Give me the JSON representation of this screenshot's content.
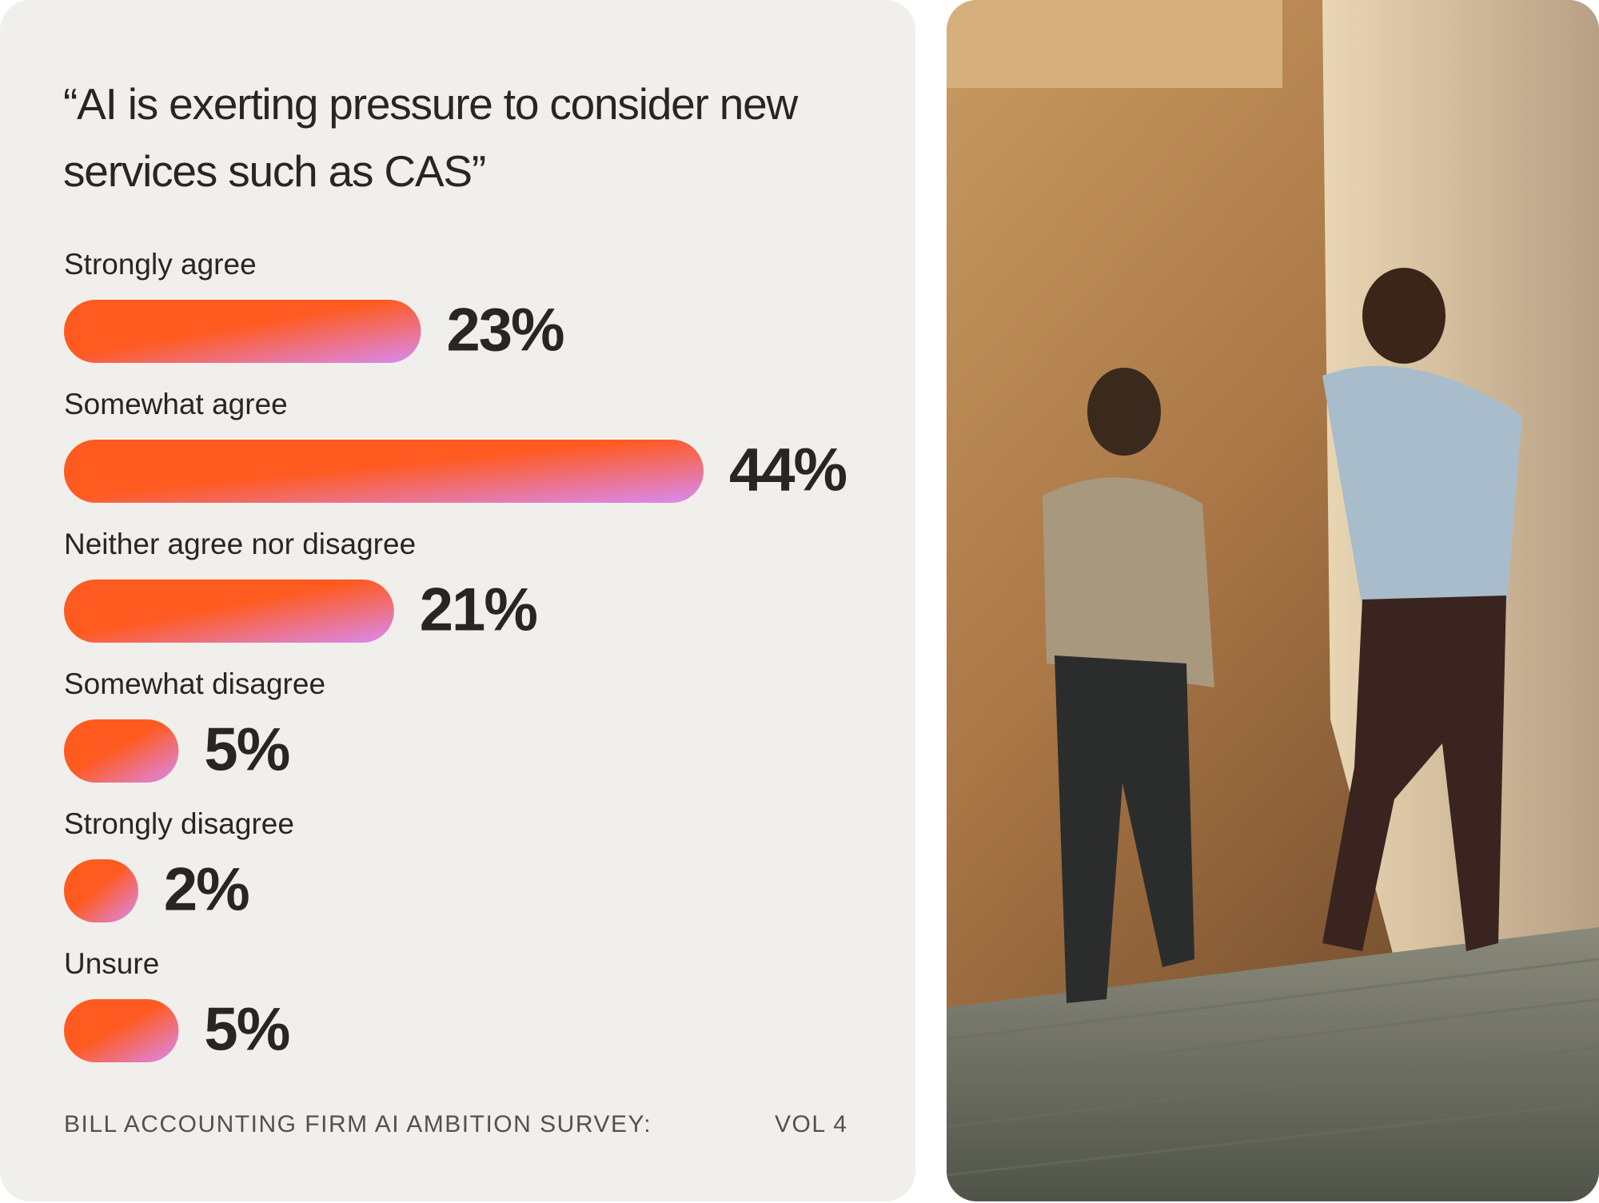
{
  "chart_data": {
    "type": "bar",
    "title": "“AI is exerting pressure to consider new services such as CAS”",
    "categories": [
      "Strongly agree",
      "Somewhat agree",
      "Neither agree nor disagree",
      "Somewhat disagree",
      "Strongly disagree",
      "Unsure"
    ],
    "values": [
      23,
      44,
      21,
      5,
      2,
      5
    ],
    "value_labels": [
      "23%",
      "44%",
      "21%",
      "5%",
      "2%",
      "5%"
    ],
    "color": "#ff5a1f",
    "color_end": "#d98af2",
    "source": "BILL ACCOUNTING FIRM AI AMBITION SURVEY:",
    "volume": "VOL 4"
  }
}
